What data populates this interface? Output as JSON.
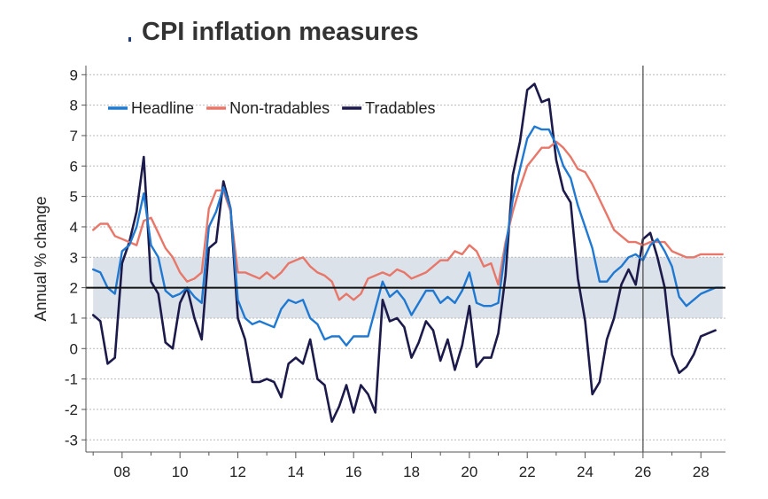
{
  "chart_data": {
    "type": "line",
    "title": "CPI inflation measures",
    "xlabel": "",
    "ylabel": "Annual % change",
    "xlim": [
      2006.75,
      2028.85
    ],
    "ylim": [
      -3.4,
      9.3
    ],
    "x_ticks": [
      2008,
      2010,
      2012,
      2014,
      2016,
      2018,
      2020,
      2022,
      2024,
      2026,
      2028
    ],
    "x_tick_labels": [
      "08",
      "10",
      "12",
      "14",
      "16",
      "18",
      "20",
      "22",
      "24",
      "26",
      "28"
    ],
    "y_ticks": [
      -3,
      -2,
      -1,
      0,
      1,
      2,
      3,
      4,
      5,
      6,
      7,
      8,
      9
    ],
    "y_tick_labels": [
      "-3",
      "-2",
      "-1",
      "0",
      "1",
      "2",
      "3",
      "4",
      "5",
      "6",
      "7",
      "8",
      "9"
    ],
    "grid": true,
    "target_band": [
      1,
      3
    ],
    "target_midpoint": 2,
    "forecast_start": 2026,
    "legend_position": "top-left",
    "series": [
      {
        "name": "Headline",
        "color": "#1f78d1",
        "points": [
          [
            2007.0,
            2.6
          ],
          [
            2007.25,
            2.5
          ],
          [
            2007.5,
            2.0
          ],
          [
            2007.75,
            1.8
          ],
          [
            2008.0,
            3.2
          ],
          [
            2008.25,
            3.4
          ],
          [
            2008.5,
            4.0
          ],
          [
            2008.75,
            5.1
          ],
          [
            2009.0,
            3.4
          ],
          [
            2009.25,
            3.0
          ],
          [
            2009.5,
            1.9
          ],
          [
            2009.75,
            1.7
          ],
          [
            2010.0,
            1.8
          ],
          [
            2010.25,
            2.0
          ],
          [
            2010.5,
            1.7
          ],
          [
            2010.75,
            1.5
          ],
          [
            2011.0,
            4.0
          ],
          [
            2011.25,
            4.5
          ],
          [
            2011.5,
            5.3
          ],
          [
            2011.75,
            4.6
          ],
          [
            2012.0,
            1.6
          ],
          [
            2012.25,
            1.0
          ],
          [
            2012.5,
            0.8
          ],
          [
            2012.75,
            0.9
          ],
          [
            2013.0,
            0.8
          ],
          [
            2013.25,
            0.7
          ],
          [
            2013.5,
            1.3
          ],
          [
            2013.75,
            1.6
          ],
          [
            2014.0,
            1.5
          ],
          [
            2014.25,
            1.6
          ],
          [
            2014.5,
            1.0
          ],
          [
            2014.75,
            0.8
          ],
          [
            2015.0,
            0.3
          ],
          [
            2015.25,
            0.4
          ],
          [
            2015.5,
            0.4
          ],
          [
            2015.75,
            0.1
          ],
          [
            2016.0,
            0.4
          ],
          [
            2016.25,
            0.4
          ],
          [
            2016.5,
            0.4
          ],
          [
            2016.75,
            1.3
          ],
          [
            2017.0,
            2.2
          ],
          [
            2017.25,
            1.7
          ],
          [
            2017.5,
            1.9
          ],
          [
            2017.75,
            1.6
          ],
          [
            2018.0,
            1.1
          ],
          [
            2018.25,
            1.5
          ],
          [
            2018.5,
            1.9
          ],
          [
            2018.75,
            1.9
          ],
          [
            2019.0,
            1.5
          ],
          [
            2019.25,
            1.7
          ],
          [
            2019.5,
            1.5
          ],
          [
            2019.75,
            1.9
          ],
          [
            2020.0,
            2.5
          ],
          [
            2020.25,
            1.5
          ],
          [
            2020.5,
            1.4
          ],
          [
            2020.75,
            1.4
          ],
          [
            2021.0,
            1.5
          ],
          [
            2021.25,
            3.3
          ],
          [
            2021.5,
            4.9
          ],
          [
            2021.75,
            5.9
          ],
          [
            2022.0,
            6.9
          ],
          [
            2022.25,
            7.3
          ],
          [
            2022.5,
            7.2
          ],
          [
            2022.75,
            7.2
          ],
          [
            2023.0,
            6.7
          ],
          [
            2023.25,
            6.0
          ],
          [
            2023.5,
            5.6
          ],
          [
            2023.75,
            4.7
          ],
          [
            2024.0,
            4.0
          ],
          [
            2024.25,
            3.3
          ],
          [
            2024.5,
            2.2
          ],
          [
            2024.75,
            2.2
          ],
          [
            2025.0,
            2.5
          ],
          [
            2025.25,
            2.7
          ],
          [
            2025.5,
            3.0
          ],
          [
            2025.75,
            3.1
          ],
          [
            2026.0,
            2.9
          ],
          [
            2026.25,
            3.4
          ],
          [
            2026.5,
            3.6
          ],
          [
            2026.75,
            3.2
          ],
          [
            2027.0,
            2.7
          ],
          [
            2027.25,
            1.7
          ],
          [
            2027.5,
            1.4
          ],
          [
            2027.75,
            1.6
          ],
          [
            2028.0,
            1.8
          ],
          [
            2028.25,
            1.9
          ],
          [
            2028.5,
            2.0
          ],
          [
            2028.75,
            2.0
          ]
        ]
      },
      {
        "name": "Non-tradables",
        "color": "#e8776a",
        "points": [
          [
            2007.0,
            3.9
          ],
          [
            2007.25,
            4.1
          ],
          [
            2007.5,
            4.1
          ],
          [
            2007.75,
            3.7
          ],
          [
            2008.0,
            3.6
          ],
          [
            2008.25,
            3.5
          ],
          [
            2008.5,
            3.4
          ],
          [
            2008.75,
            4.2
          ],
          [
            2009.0,
            4.3
          ],
          [
            2009.25,
            3.8
          ],
          [
            2009.5,
            3.3
          ],
          [
            2009.75,
            3.0
          ],
          [
            2010.0,
            2.5
          ],
          [
            2010.25,
            2.2
          ],
          [
            2010.5,
            2.3
          ],
          [
            2010.75,
            2.5
          ],
          [
            2011.0,
            4.6
          ],
          [
            2011.25,
            5.2
          ],
          [
            2011.5,
            5.2
          ],
          [
            2011.75,
            4.5
          ],
          [
            2012.0,
            2.5
          ],
          [
            2012.25,
            2.5
          ],
          [
            2012.5,
            2.4
          ],
          [
            2012.75,
            2.3
          ],
          [
            2013.0,
            2.5
          ],
          [
            2013.25,
            2.3
          ],
          [
            2013.5,
            2.5
          ],
          [
            2013.75,
            2.8
          ],
          [
            2014.0,
            2.9
          ],
          [
            2014.25,
            3.0
          ],
          [
            2014.5,
            2.7
          ],
          [
            2014.75,
            2.5
          ],
          [
            2015.0,
            2.4
          ],
          [
            2015.25,
            2.2
          ],
          [
            2015.5,
            1.6
          ],
          [
            2015.75,
            1.8
          ],
          [
            2016.0,
            1.6
          ],
          [
            2016.25,
            1.8
          ],
          [
            2016.5,
            2.3
          ],
          [
            2016.75,
            2.4
          ],
          [
            2017.0,
            2.5
          ],
          [
            2017.25,
            2.4
          ],
          [
            2017.5,
            2.6
          ],
          [
            2017.75,
            2.5
          ],
          [
            2018.0,
            2.3
          ],
          [
            2018.25,
            2.4
          ],
          [
            2018.5,
            2.5
          ],
          [
            2018.75,
            2.7
          ],
          [
            2019.0,
            2.9
          ],
          [
            2019.25,
            2.9
          ],
          [
            2019.5,
            3.2
          ],
          [
            2019.75,
            3.1
          ],
          [
            2020.0,
            3.4
          ],
          [
            2020.25,
            3.2
          ],
          [
            2020.5,
            2.7
          ],
          [
            2020.75,
            2.8
          ],
          [
            2021.0,
            2.1
          ],
          [
            2021.25,
            3.5
          ],
          [
            2021.5,
            4.5
          ],
          [
            2021.75,
            5.3
          ],
          [
            2022.0,
            6.0
          ],
          [
            2022.25,
            6.3
          ],
          [
            2022.5,
            6.6
          ],
          [
            2022.75,
            6.6
          ],
          [
            2023.0,
            6.8
          ],
          [
            2023.25,
            6.6
          ],
          [
            2023.5,
            6.3
          ],
          [
            2023.75,
            5.9
          ],
          [
            2024.0,
            5.8
          ],
          [
            2024.25,
            5.4
          ],
          [
            2024.5,
            4.9
          ],
          [
            2024.75,
            4.4
          ],
          [
            2025.0,
            3.9
          ],
          [
            2025.25,
            3.7
          ],
          [
            2025.5,
            3.5
          ],
          [
            2025.75,
            3.5
          ],
          [
            2026.0,
            3.4
          ],
          [
            2026.25,
            3.5
          ],
          [
            2026.5,
            3.5
          ],
          [
            2026.75,
            3.5
          ],
          [
            2027.0,
            3.2
          ],
          [
            2027.25,
            3.1
          ],
          [
            2027.5,
            3.0
          ],
          [
            2027.75,
            3.0
          ],
          [
            2028.0,
            3.1
          ],
          [
            2028.25,
            3.1
          ],
          [
            2028.5,
            3.1
          ],
          [
            2028.75,
            3.1
          ]
        ]
      },
      {
        "name": "Tradables",
        "color": "#1c1a4a",
        "points": [
          [
            2007.0,
            1.1
          ],
          [
            2007.25,
            0.9
          ],
          [
            2007.5,
            -0.5
          ],
          [
            2007.75,
            -0.3
          ],
          [
            2008.0,
            2.8
          ],
          [
            2008.25,
            3.5
          ],
          [
            2008.5,
            4.5
          ],
          [
            2008.75,
            6.3
          ],
          [
            2009.0,
            2.2
          ],
          [
            2009.25,
            1.8
          ],
          [
            2009.5,
            0.2
          ],
          [
            2009.75,
            -0.0
          ],
          [
            2010.0,
            1.5
          ],
          [
            2010.25,
            2.0
          ],
          [
            2010.5,
            1.0
          ],
          [
            2010.75,
            0.3
          ],
          [
            2011.0,
            3.3
          ],
          [
            2011.25,
            3.5
          ],
          [
            2011.5,
            5.5
          ],
          [
            2011.75,
            4.6
          ],
          [
            2012.0,
            1.0
          ],
          [
            2012.25,
            0.3
          ],
          [
            2012.5,
            -1.1
          ],
          [
            2012.75,
            -1.1
          ],
          [
            2013.0,
            -1.0
          ],
          [
            2013.25,
            -1.1
          ],
          [
            2013.5,
            -1.6
          ],
          [
            2013.75,
            -0.5
          ],
          [
            2014.0,
            -0.3
          ],
          [
            2014.25,
            -0.5
          ],
          [
            2014.5,
            0.3
          ],
          [
            2014.75,
            -1.0
          ],
          [
            2015.0,
            -1.2
          ],
          [
            2015.25,
            -2.4
          ],
          [
            2015.5,
            -1.9
          ],
          [
            2015.75,
            -1.2
          ],
          [
            2016.0,
            -2.1
          ],
          [
            2016.25,
            -1.2
          ],
          [
            2016.5,
            -1.5
          ],
          [
            2016.75,
            -2.1
          ],
          [
            2017.0,
            1.6
          ],
          [
            2017.25,
            0.9
          ],
          [
            2017.5,
            1.0
          ],
          [
            2017.75,
            0.7
          ],
          [
            2018.0,
            -0.3
          ],
          [
            2018.25,
            0.2
          ],
          [
            2018.5,
            0.9
          ],
          [
            2018.75,
            0.6
          ],
          [
            2019.0,
            -0.4
          ],
          [
            2019.25,
            0.3
          ],
          [
            2019.5,
            -0.7
          ],
          [
            2019.75,
            0.1
          ],
          [
            2020.0,
            1.4
          ],
          [
            2020.25,
            -0.6
          ],
          [
            2020.5,
            -0.3
          ],
          [
            2020.75,
            -0.3
          ],
          [
            2021.0,
            0.5
          ],
          [
            2021.25,
            2.4
          ],
          [
            2021.5,
            5.7
          ],
          [
            2021.75,
            6.8
          ],
          [
            2022.0,
            8.5
          ],
          [
            2022.25,
            8.7
          ],
          [
            2022.5,
            8.1
          ],
          [
            2022.75,
            8.2
          ],
          [
            2023.0,
            6.2
          ],
          [
            2023.25,
            5.2
          ],
          [
            2023.5,
            4.8
          ],
          [
            2023.75,
            2.3
          ],
          [
            2024.0,
            0.9
          ],
          [
            2024.25,
            -1.5
          ],
          [
            2024.5,
            -1.1
          ],
          [
            2024.75,
            0.3
          ],
          [
            2025.0,
            1.0
          ],
          [
            2025.25,
            2.1
          ],
          [
            2025.5,
            2.6
          ],
          [
            2025.75,
            2.1
          ],
          [
            2026.0,
            3.6
          ],
          [
            2026.25,
            3.8
          ],
          [
            2026.5,
            3.0
          ],
          [
            2026.75,
            2.0
          ],
          [
            2027.0,
            -0.2
          ],
          [
            2027.25,
            -0.8
          ],
          [
            2027.5,
            -0.6
          ],
          [
            2027.75,
            -0.2
          ],
          [
            2028.0,
            0.4
          ],
          [
            2028.25,
            0.5
          ],
          [
            2028.5,
            0.6
          ]
        ]
      }
    ]
  }
}
